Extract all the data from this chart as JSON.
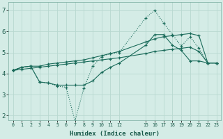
{
  "xlabel": "Humidex (Indice chaleur)",
  "bg_color": "#d4ece6",
  "grid_color": "#b8d8d0",
  "line_color": "#1a6b5a",
  "xlim": [
    -0.5,
    23.5
  ],
  "ylim": [
    1.8,
    7.4
  ],
  "xtick_positions": [
    0,
    1,
    2,
    3,
    4,
    5,
    6,
    7,
    8,
    9,
    10,
    11,
    12,
    15,
    16,
    17,
    18,
    19,
    20,
    21,
    22,
    23
  ],
  "xtick_labels": [
    "0",
    "1",
    "2",
    "3",
    "4",
    "5",
    "6",
    "7",
    "8",
    "9",
    "10",
    "11",
    "12",
    "15",
    "16",
    "17",
    "18",
    "19",
    "20",
    "21",
    "22",
    "23"
  ],
  "yticks": [
    2,
    3,
    4,
    5,
    6,
    7
  ],
  "line1_x": [
    0,
    1,
    2,
    3,
    4,
    5,
    6,
    7,
    8,
    9,
    10,
    11,
    12,
    15,
    16,
    17,
    18,
    19,
    20,
    21,
    22,
    23
  ],
  "line1_y": [
    4.15,
    4.3,
    4.35,
    3.6,
    3.55,
    3.4,
    3.35,
    1.75,
    3.3,
    4.35,
    4.8,
    4.95,
    5.0,
    6.65,
    7.0,
    6.4,
    5.85,
    5.3,
    5.75,
    5.2,
    4.5,
    4.5
  ],
  "line2_x": [
    0,
    1,
    2,
    3,
    4,
    5,
    6,
    7,
    8,
    9,
    10,
    11,
    12,
    15,
    16,
    17,
    18,
    19,
    20,
    21,
    22,
    23
  ],
  "line2_y": [
    4.15,
    4.3,
    4.35,
    3.6,
    3.55,
    3.45,
    3.45,
    3.45,
    3.45,
    3.65,
    4.05,
    4.3,
    4.5,
    5.35,
    5.85,
    5.85,
    5.35,
    5.1,
    4.6,
    4.6,
    4.5,
    4.5
  ],
  "line3_x": [
    0,
    1,
    2,
    3,
    4,
    5,
    6,
    7,
    8,
    9,
    10,
    11,
    12,
    15,
    16,
    17,
    18,
    19,
    20,
    21,
    22,
    23
  ],
  "line3_y": [
    4.15,
    4.3,
    4.35,
    4.35,
    4.45,
    4.5,
    4.55,
    4.6,
    4.65,
    4.75,
    4.85,
    4.95,
    5.05,
    5.5,
    5.65,
    5.75,
    5.8,
    5.85,
    5.9,
    5.8,
    4.5,
    4.5
  ],
  "line4_x": [
    0,
    1,
    2,
    3,
    4,
    5,
    6,
    7,
    8,
    9,
    10,
    11,
    12,
    15,
    16,
    17,
    18,
    19,
    20,
    21,
    22,
    23
  ],
  "line4_y": [
    4.15,
    4.2,
    4.25,
    4.3,
    4.35,
    4.4,
    4.45,
    4.5,
    4.55,
    4.6,
    4.65,
    4.7,
    4.75,
    4.95,
    5.05,
    5.1,
    5.15,
    5.2,
    5.25,
    5.05,
    4.5,
    4.5
  ]
}
